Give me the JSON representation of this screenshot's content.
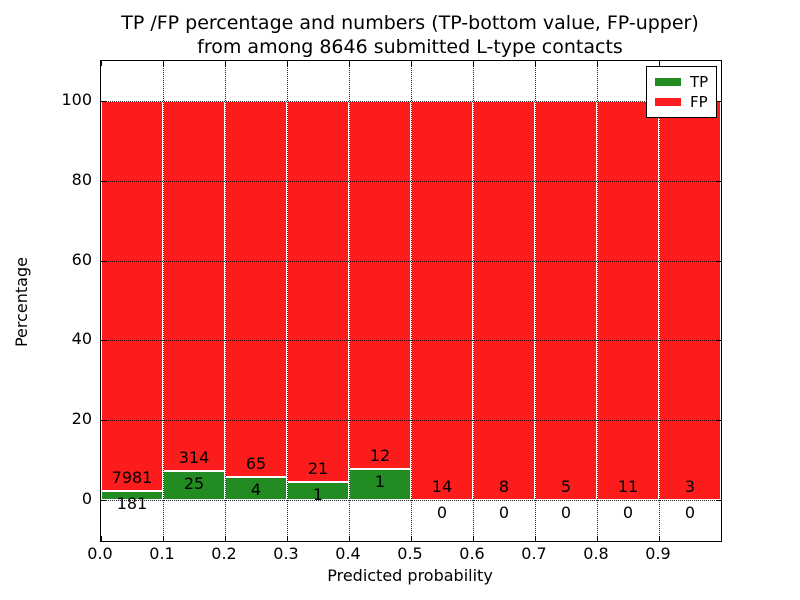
{
  "title": {
    "line1": "TP /FP percentage and numbers (TP-bottom value, FP-upper)",
    "line2": "from among 8646 submitted L-type contacts"
  },
  "axes": {
    "xlabel": "Predicted probability",
    "ylabel": "Percentage",
    "x_tick_labels": [
      "0.0",
      "0.1",
      "0.2",
      "0.3",
      "0.4",
      "0.5",
      "0.6",
      "0.7",
      "0.8",
      "0.9"
    ],
    "y_tick_labels": [
      "0",
      "20",
      "40",
      "60",
      "80",
      "100"
    ],
    "y_tick_values": [
      0,
      20,
      40,
      60,
      80,
      100
    ]
  },
  "legend": {
    "items": [
      {
        "label": "TP",
        "color": "#228b22"
      },
      {
        "label": "FP",
        "color": "#fc1c1c"
      }
    ],
    "position": "upper right"
  },
  "chart_data": {
    "type": "bar",
    "stacked": true,
    "normalized": "each bin scaled to 100%",
    "title": "TP /FP percentage and numbers (TP-bottom value, FP-upper) from among 8646 submitted L-type contacts",
    "xlabel": "Predicted probability",
    "ylabel": "Percentage",
    "xlim": [
      0,
      1
    ],
    "ylim": [
      -10.5,
      110
    ],
    "grid": "dotted black, on",
    "legend_position": "upper right",
    "bin_starts": [
      0.0,
      0.1,
      0.2,
      0.3,
      0.4,
      0.5,
      0.6,
      0.7,
      0.8,
      0.9
    ],
    "bin_width": 0.1,
    "total_contacts": 8646,
    "series": [
      {
        "name": "TP",
        "color": "#228b22",
        "counts": [
          181,
          25,
          4,
          1,
          1,
          0,
          0,
          0,
          0,
          0
        ]
      },
      {
        "name": "FP",
        "color": "#fc1c1c",
        "counts": [
          7981,
          314,
          65,
          21,
          12,
          14,
          8,
          5,
          11,
          3
        ]
      }
    ],
    "tp_percent_per_bin": [
      2.22,
      7.37,
      5.8,
      4.55,
      7.69,
      0,
      0,
      0,
      0,
      0
    ]
  }
}
